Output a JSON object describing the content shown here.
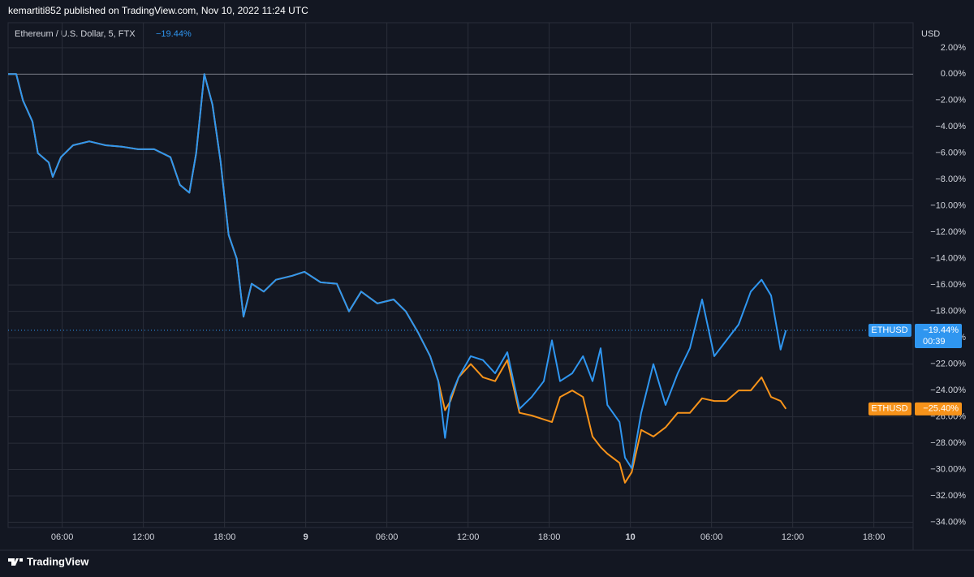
{
  "header": "kemartiti852 published on TradingView.com, Nov 10, 2022 11:24 UTC",
  "footer": "TradingView",
  "chart_data": {
    "type": "line",
    "symbol_description": "Ethereum / U.S. Dollar, 5, FTX",
    "y_axis_label": "USD",
    "x": [
      2,
      2.6,
      3.1,
      3.8,
      4.2,
      5,
      5.3,
      5.9,
      6.8,
      8,
      9.2,
      10.4,
      11.6,
      12.8,
      14,
      14.7,
      15.4,
      15.9,
      16.5,
      17.1,
      17.7,
      18.3,
      18.9,
      19.4,
      20,
      20.9,
      21.8,
      23,
      23.9,
      25.1,
      26.3,
      27.2,
      28.1,
      29.3,
      30.5,
      31.4,
      32.3,
      33.2,
      33.8,
      34.3,
      34.7,
      35.3,
      36.2,
      37.1,
      38,
      38.9,
      39.8,
      40.7,
      41.6,
      42.2,
      42.8,
      43.7,
      44.5,
      45.2,
      45.8,
      46.3,
      47.2,
      47.6,
      48.1,
      48.8,
      49.7,
      50.6,
      51.5,
      52.4,
      53.3,
      54.2,
      55.1,
      56,
      56.9,
      57.7,
      58.4,
      59.1,
      59.5
    ],
    "series": [
      {
        "name": "ETHUSD",
        "color": "#f7931a",
        "last_label": "−25.40%",
        "values": [
          0,
          0,
          -2,
          -3.6,
          -6,
          -6.7,
          -7.8,
          -6.3,
          -5.4,
          -5.1,
          -5.4,
          -5.5,
          -5.7,
          -5.7,
          -6.3,
          -8.4,
          -9,
          -6,
          0,
          -2.3,
          -6.6,
          -12.2,
          -14,
          -18.4,
          -15.9,
          -16.5,
          -15.6,
          -15.3,
          -15,
          -15.8,
          -15.9,
          -18,
          -16.5,
          -17.4,
          -17.1,
          -18,
          -19.6,
          -21.4,
          -23.3,
          -25.5,
          -24.8,
          -23,
          -22,
          -23,
          -23.3,
          -21.7,
          -25.7,
          -25.9,
          -26.2,
          -26.4,
          -24.5,
          -24,
          -24.5,
          -27.5,
          -28.3,
          -28.8,
          -29.5,
          -31,
          -30.2,
          -27,
          -27.5,
          -26.8,
          -25.7,
          -25.7,
          -24.6,
          -24.8,
          -24.8,
          -24,
          -24,
          -23,
          -24.5,
          -24.8,
          -25.4
        ]
      },
      {
        "name": "ETHUSD",
        "color": "#2f96f0",
        "last_label": "−19.44%",
        "countdown": "00:39",
        "values": [
          0,
          0,
          -2,
          -3.6,
          -6,
          -6.7,
          -7.8,
          -6.3,
          -5.4,
          -5.1,
          -5.4,
          -5.5,
          -5.7,
          -5.7,
          -6.3,
          -8.4,
          -9,
          -6,
          0,
          -2.3,
          -6.6,
          -12.2,
          -14,
          -18.4,
          -15.9,
          -16.5,
          -15.6,
          -15.3,
          -15,
          -15.8,
          -15.9,
          -18,
          -16.5,
          -17.4,
          -17.1,
          -18,
          -19.6,
          -21.4,
          -23.3,
          -27.6,
          -24.5,
          -23,
          -21.4,
          -21.7,
          -22.7,
          -21.1,
          -25.4,
          -24.5,
          -23.3,
          -20.2,
          -23.3,
          -22.7,
          -21.4,
          -23.3,
          -20.8,
          -25.1,
          -26.4,
          -29.1,
          -29.9,
          -25.7,
          -22,
          -25.1,
          -22.7,
          -20.8,
          -17.1,
          -21.4,
          -20.2,
          -19,
          -16.5,
          -15.6,
          -16.8,
          -20.9,
          -19.44
        ]
      }
    ],
    "xlim": [
      2,
      68.9
    ],
    "xticks": [
      {
        "value": 6,
        "label": "06:00"
      },
      {
        "value": 12,
        "label": "12:00"
      },
      {
        "value": 18,
        "label": "18:00"
      },
      {
        "value": 24,
        "label": "9"
      },
      {
        "value": 30,
        "label": "06:00"
      },
      {
        "value": 36,
        "label": "12:00"
      },
      {
        "value": 42,
        "label": "18:00"
      },
      {
        "value": 48,
        "label": "10"
      },
      {
        "value": 54,
        "label": "06:00"
      },
      {
        "value": 60,
        "label": "12:00"
      },
      {
        "value": 66,
        "label": "18:00"
      }
    ],
    "ylim": [
      -34.4,
      3.9
    ],
    "yticks": [
      {
        "value": 2,
        "label": "2.00%"
      },
      {
        "value": 0,
        "label": "0.00%"
      },
      {
        "value": -2,
        "label": "−2.00%"
      },
      {
        "value": -4,
        "label": "−4.00%"
      },
      {
        "value": -6,
        "label": "−6.00%"
      },
      {
        "value": -8,
        "label": "−8.00%"
      },
      {
        "value": -10,
        "label": "−10.00%"
      },
      {
        "value": -12,
        "label": "−12.00%"
      },
      {
        "value": -14,
        "label": "−14.00%"
      },
      {
        "value": -16,
        "label": "−16.00%"
      },
      {
        "value": -18,
        "label": "−18.00%"
      },
      {
        "value": -20,
        "label": "−20.00%"
      },
      {
        "value": -22,
        "label": "−22.00%"
      },
      {
        "value": -24,
        "label": "−24.00%"
      },
      {
        "value": -26,
        "label": "−26.00%"
      },
      {
        "value": -28,
        "label": "−28.00%"
      },
      {
        "value": -30,
        "label": "−30.00%"
      },
      {
        "value": -32,
        "label": "−32.00%"
      },
      {
        "value": -34,
        "label": "−34.00%"
      }
    ],
    "grid": true
  }
}
